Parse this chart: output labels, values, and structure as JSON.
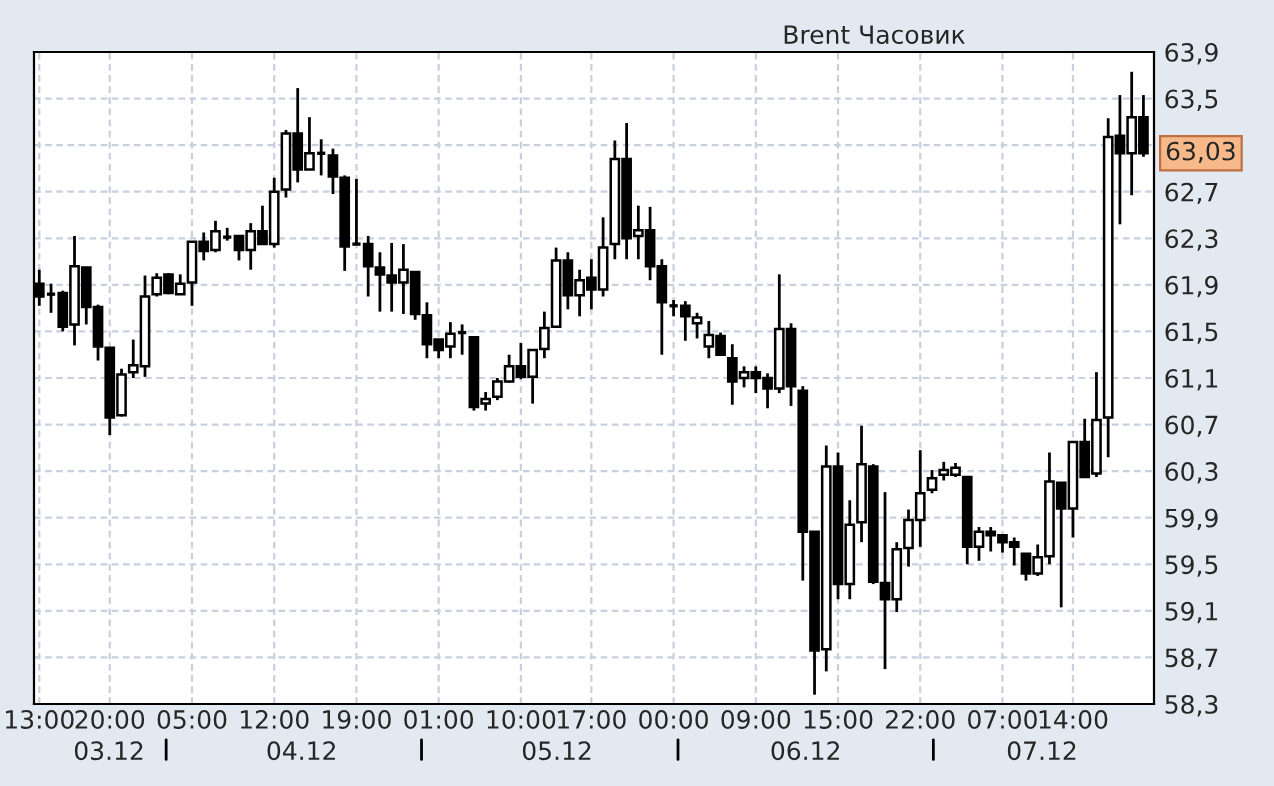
{
  "chart_data": {
    "type": "candlestick",
    "title": "Brent Часовик",
    "categories": [
      "13:00",
      null,
      null,
      null,
      null,
      null,
      "20:00",
      null,
      null,
      null,
      null,
      null,
      null,
      "05:00",
      null,
      null,
      null,
      null,
      null,
      null,
      "12:00",
      null,
      null,
      null,
      null,
      null,
      null,
      "19:00",
      null,
      null,
      null,
      null,
      null,
      null,
      "01:00",
      null,
      null,
      null,
      null,
      null,
      null,
      "10:00",
      null,
      null,
      null,
      null,
      null,
      "17:00",
      null,
      null,
      null,
      null,
      null,
      null,
      "00:00",
      null,
      null,
      null,
      null,
      null,
      null,
      "09:00",
      null,
      null,
      null,
      null,
      null,
      null,
      "15:00",
      null,
      null,
      null,
      null,
      null,
      null,
      "22:00",
      null,
      null,
      null,
      null,
      null,
      null,
      "07:00",
      null,
      null,
      null,
      null,
      null,
      "14:00",
      null,
      null,
      null,
      null,
      null,
      null
    ],
    "ohlc": [
      [
        61.91,
        62.03,
        61.72,
        61.8
      ],
      [
        61.82,
        61.91,
        61.66,
        61.82
      ],
      [
        61.83,
        61.85,
        61.5,
        61.54
      ],
      [
        61.56,
        62.32,
        61.38,
        62.06
      ],
      [
        62.05,
        62.05,
        61.56,
        61.71
      ],
      [
        61.71,
        61.73,
        61.25,
        61.37
      ],
      [
        61.36,
        61.36,
        60.61,
        60.76
      ],
      [
        60.78,
        61.18,
        60.77,
        61.13
      ],
      [
        61.15,
        61.43,
        61.1,
        61.21
      ],
      [
        61.2,
        61.98,
        61.11,
        61.8
      ],
      [
        61.82,
        62.0,
        61.8,
        61.96
      ],
      [
        61.99,
        62.0,
        61.82,
        61.83
      ],
      [
        61.82,
        61.99,
        61.82,
        61.91
      ],
      [
        61.92,
        62.27,
        61.72,
        62.27
      ],
      [
        62.27,
        62.35,
        62.11,
        62.19
      ],
      [
        62.2,
        62.45,
        62.18,
        62.36
      ],
      [
        62.31,
        62.39,
        62.28,
        62.31
      ],
      [
        62.32,
        62.32,
        62.11,
        62.2
      ],
      [
        62.2,
        62.43,
        62.03,
        62.36
      ],
      [
        62.36,
        62.58,
        62.25,
        62.25
      ],
      [
        62.25,
        62.82,
        62.22,
        62.7
      ],
      [
        62.72,
        63.23,
        62.65,
        63.2
      ],
      [
        63.2,
        63.59,
        62.78,
        62.89
      ],
      [
        62.89,
        63.34,
        62.89,
        63.03
      ],
      [
        63.03,
        63.15,
        62.84,
        63.03
      ],
      [
        63.01,
        63.07,
        62.68,
        62.83
      ],
      [
        62.82,
        62.84,
        62.02,
        62.23
      ],
      [
        62.25,
        62.81,
        62.25,
        62.25
      ],
      [
        62.25,
        62.32,
        61.8,
        62.06
      ],
      [
        62.05,
        62.18,
        61.67,
        61.99
      ],
      [
        61.98,
        62.26,
        61.67,
        61.92
      ],
      [
        61.92,
        62.25,
        61.65,
        62.03
      ],
      [
        62.01,
        62.01,
        61.6,
        61.65
      ],
      [
        61.64,
        61.75,
        61.27,
        61.39
      ],
      [
        61.43,
        61.43,
        61.27,
        61.34
      ],
      [
        61.37,
        61.58,
        61.27,
        61.48
      ],
      [
        61.49,
        61.56,
        61.3,
        61.49
      ],
      [
        61.45,
        61.45,
        60.82,
        60.85
      ],
      [
        60.88,
        60.98,
        60.82,
        60.92
      ],
      [
        60.94,
        61.1,
        60.91,
        61.07
      ],
      [
        61.07,
        61.3,
        61.06,
        61.2
      ],
      [
        61.2,
        61.4,
        61.09,
        61.11
      ],
      [
        61.11,
        61.34,
        60.88,
        61.34
      ],
      [
        61.35,
        61.67,
        61.27,
        61.53
      ],
      [
        61.54,
        62.22,
        61.54,
        62.11
      ],
      [
        62.11,
        62.18,
        61.69,
        61.81
      ],
      [
        61.81,
        62.03,
        61.63,
        61.94
      ],
      [
        61.96,
        62.12,
        61.69,
        61.86
      ],
      [
        61.86,
        62.48,
        61.8,
        62.22
      ],
      [
        62.25,
        63.14,
        62.12,
        62.98
      ],
      [
        62.98,
        63.29,
        62.12,
        62.3
      ],
      [
        62.32,
        62.58,
        62.12,
        62.37
      ],
      [
        62.37,
        62.57,
        61.94,
        62.06
      ],
      [
        62.06,
        62.12,
        61.3,
        61.75
      ],
      [
        61.72,
        61.77,
        61.63,
        61.72
      ],
      [
        61.72,
        61.76,
        61.42,
        61.63
      ],
      [
        61.57,
        61.66,
        61.44,
        61.62
      ],
      [
        61.37,
        61.59,
        61.27,
        61.47
      ],
      [
        61.46,
        61.49,
        61.29,
        61.3
      ],
      [
        61.27,
        61.39,
        60.87,
        61.07
      ],
      [
        61.1,
        61.2,
        61.02,
        61.15
      ],
      [
        61.15,
        61.2,
        60.97,
        61.1
      ],
      [
        61.1,
        61.14,
        60.84,
        61.01
      ],
      [
        61.01,
        61.99,
        60.97,
        61.52
      ],
      [
        61.52,
        61.57,
        60.86,
        61.03
      ],
      [
        60.99,
        61.03,
        59.36,
        59.78
      ],
      [
        59.78,
        59.78,
        58.38,
        58.76
      ],
      [
        58.77,
        60.52,
        58.58,
        60.34
      ],
      [
        60.34,
        60.46,
        59.2,
        59.33
      ],
      [
        59.33,
        60.05,
        59.2,
        59.84
      ],
      [
        59.86,
        60.69,
        59.69,
        60.36
      ],
      [
        60.34,
        60.36,
        59.33,
        59.35
      ],
      [
        59.34,
        60.12,
        58.6,
        59.2
      ],
      [
        59.2,
        59.69,
        59.09,
        59.63
      ],
      [
        59.64,
        59.97,
        59.48,
        59.88
      ],
      [
        59.88,
        60.48,
        59.65,
        60.11
      ],
      [
        60.14,
        60.31,
        60.11,
        60.24
      ],
      [
        60.27,
        60.38,
        60.22,
        60.31
      ],
      [
        60.27,
        60.37,
        60.25,
        60.33
      ],
      [
        60.25,
        60.25,
        59.5,
        59.65
      ],
      [
        59.65,
        59.82,
        59.53,
        59.78
      ],
      [
        59.78,
        59.82,
        59.61,
        59.75
      ],
      [
        59.75,
        59.75,
        59.6,
        59.69
      ],
      [
        59.69,
        59.73,
        59.49,
        59.65
      ],
      [
        59.59,
        59.59,
        59.36,
        59.42
      ],
      [
        59.42,
        59.67,
        59.4,
        59.56
      ],
      [
        59.57,
        60.46,
        59.5,
        60.21
      ],
      [
        60.2,
        60.2,
        59.13,
        59.98
      ],
      [
        59.98,
        60.55,
        59.73,
        60.55
      ],
      [
        60.55,
        60.75,
        60.25,
        60.25
      ],
      [
        60.28,
        61.15,
        60.25,
        60.74
      ],
      [
        60.76,
        63.33,
        60.42,
        63.17
      ],
      [
        63.18,
        63.53,
        62.42,
        63.03
      ],
      [
        63.03,
        63.73,
        62.67,
        63.34
      ],
      [
        63.34,
        63.53,
        63.0,
        63.03
      ]
    ],
    "color": "#000000",
    "ylim": [
      58.3,
      63.9
    ],
    "yticks": [
      {
        "value": 58.3,
        "label": "58,3"
      },
      {
        "value": 58.7,
        "label": "58,7"
      },
      {
        "value": 59.1,
        "label": "59,1"
      },
      {
        "value": 59.5,
        "label": "59,5"
      },
      {
        "value": 59.9,
        "label": "59,9"
      },
      {
        "value": 60.3,
        "label": "60,3"
      },
      {
        "value": 60.7,
        "label": "60,7"
      },
      {
        "value": 61.1,
        "label": "61,1"
      },
      {
        "value": 61.5,
        "label": "61,5"
      },
      {
        "value": 61.9,
        "label": "61,9"
      },
      {
        "value": 62.3,
        "label": "62,3"
      },
      {
        "value": 62.7,
        "label": "62,7"
      },
      {
        "value": 63.1,
        "label": null
      },
      {
        "value": 63.5,
        "label": "63,5"
      },
      {
        "value": 63.9,
        "label": "63,9"
      }
    ],
    "annotations": [
      "63,03",
      "03.12",
      "04.12",
      "05.12",
      "06.12",
      "07.12"
    ],
    "grid": true
  }
}
